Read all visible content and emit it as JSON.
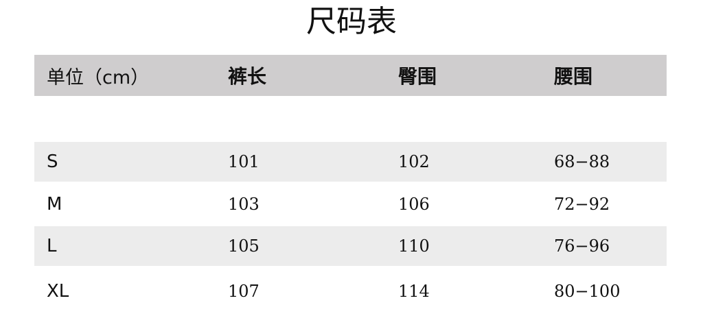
{
  "title": "尺码表",
  "headers": [
    "单位（cm）",
    "裤长",
    "臀围",
    "腰围"
  ],
  "rows": [
    [
      "S",
      "101",
      "102",
      "68−88"
    ],
    [
      "M",
      "103",
      "106",
      "72−92"
    ],
    [
      "L",
      "105",
      "110",
      "76−96"
    ],
    [
      "XL",
      "107",
      "114",
      "80−100"
    ]
  ],
  "colors": {
    "header_bg": "#cfcdce",
    "stripe_bg": "#ececec"
  }
}
